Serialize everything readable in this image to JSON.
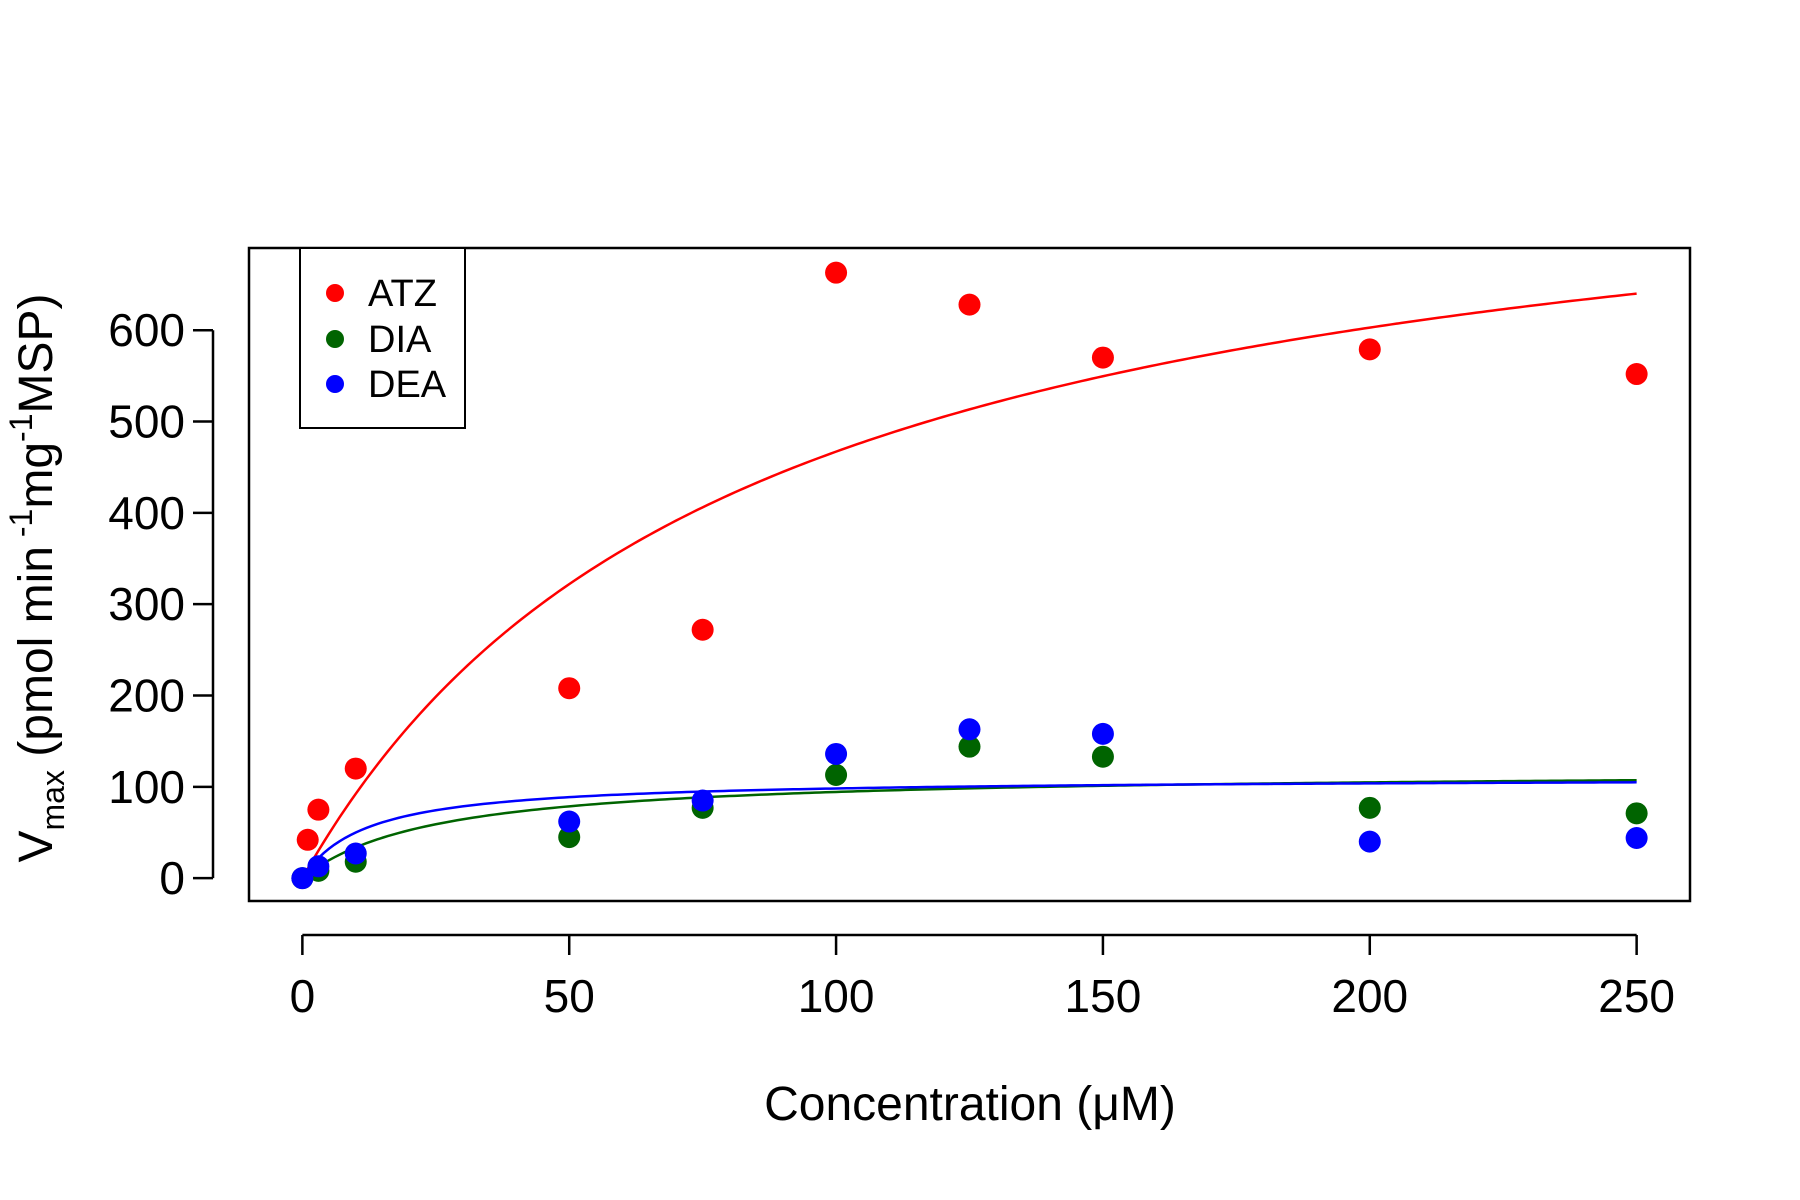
{
  "chart_data": {
    "type": "scatter",
    "title": "",
    "xlabel": "Concentration (μM)",
    "ylabel": {
      "v": "V",
      "v_sub": "max",
      "p1": " (pmol min",
      "sup1": " -1",
      "p2": "mg",
      "sup2": "-1",
      "p3": "MSP)"
    },
    "xlim": [
      -10,
      260
    ],
    "ylim": [
      -25,
      690
    ],
    "xticks": [
      0,
      50,
      100,
      150,
      200,
      250
    ],
    "yticks": [
      0,
      100,
      200,
      300,
      400,
      500,
      600
    ],
    "grid": false,
    "legend_position": "top-left",
    "series": [
      {
        "name": "ATZ",
        "color": "#ff0000",
        "points": [
          [
            1,
            42
          ],
          [
            3,
            75
          ],
          [
            10,
            120
          ],
          [
            50,
            208
          ],
          [
            75,
            272
          ],
          [
            100,
            663
          ],
          [
            125,
            628
          ],
          [
            150,
            570
          ],
          [
            200,
            579
          ],
          [
            250,
            552
          ]
        ],
        "fit": {
          "model": "michaelis-menten",
          "vmax": 850,
          "km": 82
        }
      },
      {
        "name": "DIA",
        "color": "#006400",
        "points": [
          [
            0,
            0
          ],
          [
            3,
            8
          ],
          [
            10,
            18
          ],
          [
            50,
            45
          ],
          [
            75,
            77
          ],
          [
            100,
            113
          ],
          [
            125,
            144
          ],
          [
            150,
            133
          ],
          [
            200,
            77
          ],
          [
            250,
            71
          ]
        ],
        "fit": {
          "model": "michaelis-menten",
          "vmax": 118,
          "km": 25
        }
      },
      {
        "name": "DEA",
        "color": "#0000ff",
        "points": [
          [
            0,
            0
          ],
          [
            3,
            13
          ],
          [
            10,
            27
          ],
          [
            50,
            62
          ],
          [
            75,
            85
          ],
          [
            100,
            136
          ],
          [
            125,
            163
          ],
          [
            150,
            158
          ],
          [
            200,
            40
          ],
          [
            250,
            44
          ]
        ],
        "fit": {
          "model": "michaelis-menten",
          "vmax": 110,
          "km": 12
        }
      }
    ]
  }
}
